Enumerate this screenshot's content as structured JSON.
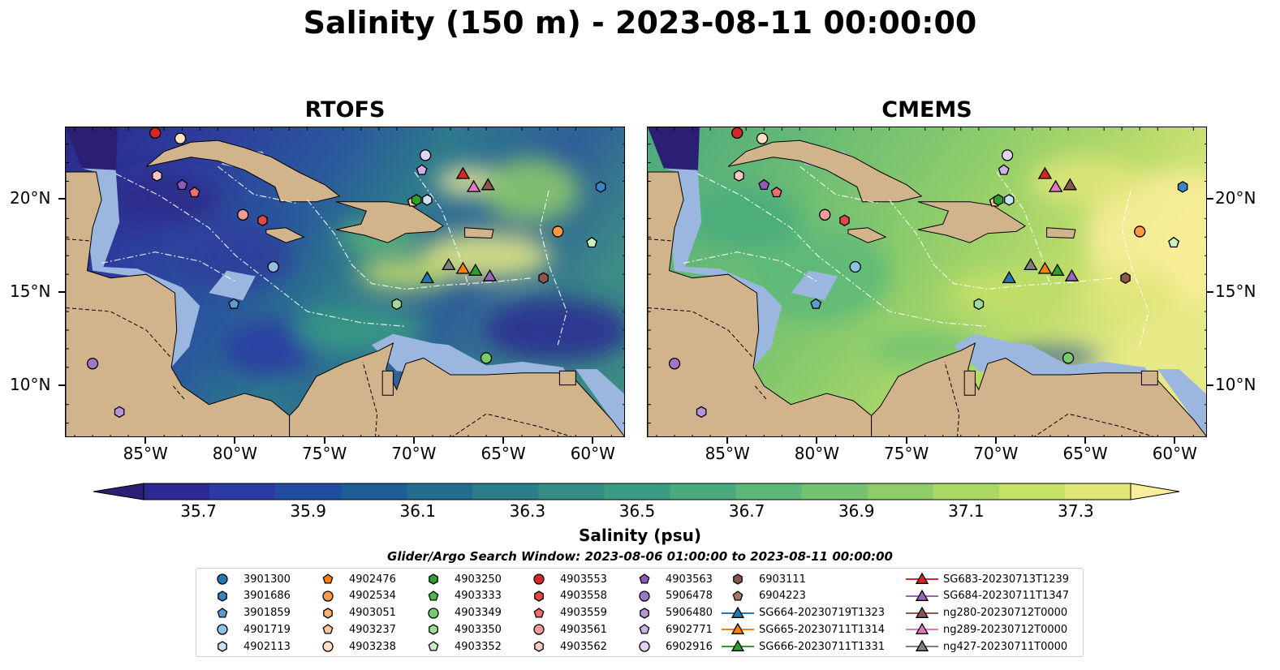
{
  "title": "Salinity (150 m) - 2023-08-11 00:00:00",
  "panels": [
    {
      "title": "RTOFS",
      "key": "rtofs"
    },
    {
      "title": "CMEMS",
      "key": "cmems"
    }
  ],
  "axes": {
    "x_ticks": [
      "85°W",
      "80°W",
      "75°W",
      "70°W",
      "65°W",
      "60°W"
    ],
    "x_values": [
      -85,
      -80,
      -75,
      -70,
      -65,
      -60
    ],
    "y_ticks": [
      "20°N",
      "15°N",
      "10°N"
    ],
    "y_values": [
      20,
      15,
      10
    ],
    "lon_range": [
      -89.5,
      -58.2
    ],
    "lat_range": [
      7.2,
      23.9
    ]
  },
  "colorbar": {
    "label": "Salinity (psu)",
    "ticks": [
      "35.7",
      "35.9",
      "36.1",
      "36.3",
      "36.5",
      "36.7",
      "36.9",
      "37.1",
      "37.3"
    ],
    "tick_values": [
      35.7,
      35.9,
      36.1,
      36.3,
      36.5,
      36.7,
      36.9,
      37.1,
      37.3
    ],
    "colors": [
      "#2a1f72",
      "#2c2a92",
      "#2b3ba3",
      "#204d9f",
      "#1d5e97",
      "#246d8f",
      "#2d7e8b",
      "#348e86",
      "#3b9c82",
      "#49ab7d",
      "#5cb878",
      "#73c370",
      "#8fcd6a",
      "#abd865",
      "#c6e068",
      "#e0e67a",
      "#fbee9a"
    ]
  },
  "search_window": "Glider/Argo Search Window: 2023-08-06 01:00:00 to 2023-08-11 00:00:00",
  "legend": {
    "columns": [
      [
        {
          "label": "3901300",
          "marker": "circle",
          "color": "#1f77b4"
        },
        {
          "label": "3901686",
          "marker": "hexagon",
          "color": "#3b84c4"
        },
        {
          "label": "3901859",
          "marker": "pentagon",
          "color": "#5a9bd4"
        },
        {
          "label": "4901719",
          "marker": "circle",
          "color": "#8ec1e6"
        },
        {
          "label": "4902113",
          "marker": "hexagon",
          "color": "#c7e1f5"
        }
      ],
      [
        {
          "label": "4902476",
          "marker": "pentagon",
          "color": "#ff7f0e"
        },
        {
          "label": "4902534",
          "marker": "circle",
          "color": "#ff9a42"
        },
        {
          "label": "4903051",
          "marker": "hexagon",
          "color": "#ffb070"
        },
        {
          "label": "4903237",
          "marker": "pentagon",
          "color": "#ffc894"
        },
        {
          "label": "4903238",
          "marker": "circle",
          "color": "#ffe0bf"
        }
      ],
      [
        {
          "label": "4903250",
          "marker": "hexagon",
          "color": "#2ca02c"
        },
        {
          "label": "4903333",
          "marker": "pentagon",
          "color": "#4cb84c"
        },
        {
          "label": "4903349",
          "marker": "circle",
          "color": "#74cc6c"
        },
        {
          "label": "4903350",
          "marker": "hexagon",
          "color": "#9fdb96"
        },
        {
          "label": "4903352",
          "marker": "pentagon",
          "color": "#c9f0c0"
        }
      ],
      [
        {
          "label": "4903553",
          "marker": "circle",
          "color": "#d62728"
        },
        {
          "label": "4903558",
          "marker": "hexagon",
          "color": "#e04848"
        },
        {
          "label": "4903559",
          "marker": "pentagon",
          "color": "#ec6e6e"
        },
        {
          "label": "4903561",
          "marker": "circle",
          "color": "#f49a98"
        },
        {
          "label": "4903562",
          "marker": "hexagon",
          "color": "#fbc7c5"
        }
      ],
      [
        {
          "label": "4903563",
          "marker": "pentagon",
          "color": "#8c5cb8"
        },
        {
          "label": "5906478",
          "marker": "circle",
          "color": "#9f77c8"
        },
        {
          "label": "5906480",
          "marker": "hexagon",
          "color": "#b594d8"
        },
        {
          "label": "6902771",
          "marker": "pentagon",
          "color": "#ccb3e6"
        },
        {
          "label": "6902916",
          "marker": "circle",
          "color": "#e3d3f3"
        }
      ],
      [
        {
          "label": "6903111",
          "marker": "hexagon",
          "color": "#8c564b"
        },
        {
          "label": "6904223",
          "marker": "pentagon",
          "color": "#a9746a"
        },
        {
          "label": "SG664-20230719T1323",
          "marker": "triangle",
          "color": "#1f77b4"
        },
        {
          "label": "SG665-20230711T1314",
          "marker": "triangle",
          "color": "#ff7f0e"
        },
        {
          "label": "SG666-20230711T1331",
          "marker": "triangle",
          "color": "#2ca02c"
        }
      ],
      [
        {
          "label": "SG683-20230713T1239",
          "marker": "triangle",
          "color": "#d62728"
        },
        {
          "label": "SG684-20230711T1347",
          "marker": "triangle",
          "color": "#9467bd"
        },
        {
          "label": "ng280-20230712T0000",
          "marker": "triangle",
          "color": "#8c564b"
        },
        {
          "label": "ng289-20230712T0000",
          "marker": "triangle",
          "color": "#e377c2"
        },
        {
          "label": "ng427-20230711T0000",
          "marker": "triangle",
          "color": "#7f7f7f"
        }
      ]
    ]
  },
  "platforms": [
    {
      "id": "3901300",
      "lon": -84.5,
      "lat": 23.6
    },
    {
      "id": "4903553",
      "lon": -84.5,
      "lat": 23.6
    },
    {
      "id": "4903238",
      "lon": -83.1,
      "lat": 23.3
    },
    {
      "id": "4903562",
      "lon": -84.4,
      "lat": 21.3
    },
    {
      "id": "4903563",
      "lon": -83.0,
      "lat": 20.8
    },
    {
      "id": "4903559",
      "lon": -82.3,
      "lat": 20.4
    },
    {
      "id": "4903561",
      "lon": -79.6,
      "lat": 19.2
    },
    {
      "id": "4903558",
      "lon": -78.5,
      "lat": 18.9
    },
    {
      "id": "4901719",
      "lon": -77.9,
      "lat": 16.4
    },
    {
      "id": "3901859",
      "lon": -80.1,
      "lat": 14.4
    },
    {
      "id": "4903237",
      "lon": -70.1,
      "lat": 19.9
    },
    {
      "id": "4903250",
      "lon": -69.9,
      "lat": 20.0
    },
    {
      "id": "4902113",
      "lon": -69.3,
      "lat": 20.0
    },
    {
      "id": "6902771",
      "lon": -69.6,
      "lat": 21.6
    },
    {
      "id": "6902916",
      "lon": -69.4,
      "lat": 22.4
    },
    {
      "id": "3901686",
      "lon": -59.6,
      "lat": 20.7
    },
    {
      "id": "4902534",
      "lon": -62.0,
      "lat": 18.3
    },
    {
      "id": "4903352",
      "lon": -60.1,
      "lat": 17.7
    },
    {
      "id": "6903111",
      "lon": -62.8,
      "lat": 15.8
    },
    {
      "id": "4903350",
      "lon": -71.0,
      "lat": 14.4
    },
    {
      "id": "4903349",
      "lon": -66.0,
      "lat": 11.5
    },
    {
      "id": "5906478",
      "lon": -88.0,
      "lat": 11.2
    },
    {
      "id": "5906480",
      "lon": -86.5,
      "lat": 8.6
    },
    {
      "id": "SG683-20230713T1239",
      "lon": -67.3,
      "lat": 21.4
    },
    {
      "id": "ng289-20230712T0000",
      "lon": -66.7,
      "lat": 20.7
    },
    {
      "id": "ng280-20230712T0000",
      "lon": -65.9,
      "lat": 20.8
    },
    {
      "id": "SG664-20230719T1323",
      "lon": -69.3,
      "lat": 15.8
    },
    {
      "id": "ng427-20230711T0000",
      "lon": -68.1,
      "lat": 16.5
    },
    {
      "id": "SG665-20230711T1314",
      "lon": -67.3,
      "lat": 16.3
    },
    {
      "id": "SG666-20230711T1331",
      "lon": -66.6,
      "lat": 16.2
    },
    {
      "id": "SG684-20230711T1347",
      "lon": -65.8,
      "lat": 15.9
    }
  ]
}
